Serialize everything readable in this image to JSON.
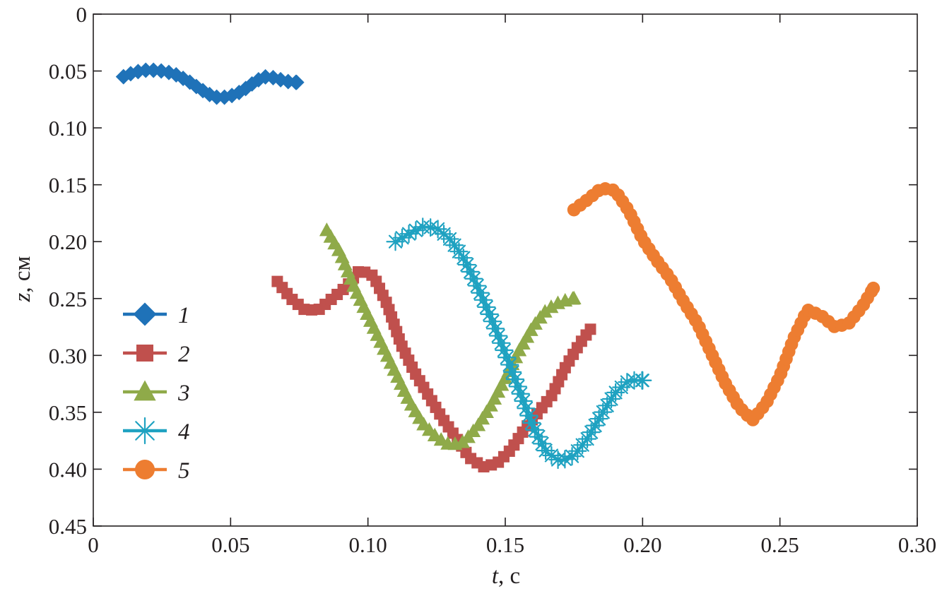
{
  "chart_data": {
    "type": "scatter",
    "title": "",
    "xlabel": {
      "var": "t",
      "unit": ", c"
    },
    "ylabel": {
      "var": "z",
      "unit": ", см"
    },
    "xlim": [
      0,
      0.3
    ],
    "ylim": [
      0,
      0.45
    ],
    "y_inverted": true,
    "grid": false,
    "legend_position": "lower-left",
    "x_ticks": [
      "0",
      "0.05",
      "0.10",
      "0.15",
      "0.20",
      "0.25",
      "0.30"
    ],
    "x_tick_values": [
      0,
      0.05,
      0.1,
      0.15,
      0.2,
      0.25,
      0.3
    ],
    "y_ticks": [
      "0",
      "0.05",
      "0.10",
      "0.15",
      "0.20",
      "0.25",
      "0.30",
      "0.35",
      "0.40",
      "0.45"
    ],
    "y_tick_values": [
      0,
      0.05,
      0.1,
      0.15,
      0.2,
      0.25,
      0.3,
      0.35,
      0.4,
      0.45
    ],
    "series": [
      {
        "name": "1",
        "marker": "diamond",
        "color": "#1f72b8",
        "points": [
          [
            0.011,
            0.055
          ],
          [
            0.015,
            0.051
          ],
          [
            0.02,
            0.049
          ],
          [
            0.025,
            0.05
          ],
          [
            0.029,
            0.052
          ],
          [
            0.034,
            0.058
          ],
          [
            0.039,
            0.066
          ],
          [
            0.044,
            0.073
          ],
          [
            0.049,
            0.073
          ],
          [
            0.054,
            0.068
          ],
          [
            0.058,
            0.061
          ],
          [
            0.062,
            0.055
          ],
          [
            0.066,
            0.056
          ],
          [
            0.07,
            0.059
          ],
          [
            0.074,
            0.06
          ]
        ]
      },
      {
        "name": "2",
        "marker": "square",
        "color": "#c0504d",
        "points": [
          [
            0.067,
            0.235
          ],
          [
            0.072,
            0.25
          ],
          [
            0.077,
            0.26
          ],
          [
            0.082,
            0.26
          ],
          [
            0.087,
            0.25
          ],
          [
            0.092,
            0.24
          ],
          [
            0.097,
            0.225
          ],
          [
            0.102,
            0.23
          ],
          [
            0.107,
            0.255
          ],
          [
            0.112,
            0.29
          ],
          [
            0.117,
            0.315
          ],
          [
            0.122,
            0.335
          ],
          [
            0.127,
            0.355
          ],
          [
            0.132,
            0.372
          ],
          [
            0.137,
            0.39
          ],
          [
            0.142,
            0.398
          ],
          [
            0.147,
            0.395
          ],
          [
            0.152,
            0.383
          ],
          [
            0.157,
            0.365
          ],
          [
            0.162,
            0.35
          ],
          [
            0.167,
            0.335
          ],
          [
            0.172,
            0.31
          ],
          [
            0.177,
            0.29
          ],
          [
            0.181,
            0.277
          ]
        ]
      },
      {
        "name": "3",
        "marker": "triangle",
        "color": "#8faa49",
        "points": [
          [
            0.085,
            0.19
          ],
          [
            0.09,
            0.21
          ],
          [
            0.095,
            0.24
          ],
          [
            0.1,
            0.265
          ],
          [
            0.105,
            0.29
          ],
          [
            0.11,
            0.315
          ],
          [
            0.115,
            0.34
          ],
          [
            0.12,
            0.36
          ],
          [
            0.125,
            0.372
          ],
          [
            0.13,
            0.379
          ],
          [
            0.135,
            0.376
          ],
          [
            0.14,
            0.362
          ],
          [
            0.145,
            0.343
          ],
          [
            0.15,
            0.32
          ],
          [
            0.155,
            0.296
          ],
          [
            0.16,
            0.275
          ],
          [
            0.165,
            0.26
          ],
          [
            0.17,
            0.253
          ],
          [
            0.175,
            0.25
          ]
        ]
      },
      {
        "name": "4",
        "marker": "asterisk",
        "color": "#1fa2c1",
        "points": [
          [
            0.11,
            0.2
          ],
          [
            0.115,
            0.193
          ],
          [
            0.12,
            0.187
          ],
          [
            0.125,
            0.188
          ],
          [
            0.13,
            0.198
          ],
          [
            0.135,
            0.215
          ],
          [
            0.14,
            0.24
          ],
          [
            0.145,
            0.268
          ],
          [
            0.15,
            0.298
          ],
          [
            0.155,
            0.33
          ],
          [
            0.16,
            0.362
          ],
          [
            0.165,
            0.385
          ],
          [
            0.17,
            0.393
          ],
          [
            0.175,
            0.388
          ],
          [
            0.18,
            0.373
          ],
          [
            0.185,
            0.352
          ],
          [
            0.19,
            0.333
          ],
          [
            0.195,
            0.322
          ],
          [
            0.2,
            0.322
          ]
        ]
      },
      {
        "name": "5",
        "marker": "circle",
        "color": "#ed7d31",
        "points": [
          [
            0.175,
            0.172
          ],
          [
            0.18,
            0.163
          ],
          [
            0.185,
            0.153
          ],
          [
            0.19,
            0.155
          ],
          [
            0.195,
            0.173
          ],
          [
            0.2,
            0.198
          ],
          [
            0.205,
            0.216
          ],
          [
            0.21,
            0.232
          ],
          [
            0.215,
            0.253
          ],
          [
            0.22,
            0.272
          ],
          [
            0.225,
            0.298
          ],
          [
            0.23,
            0.324
          ],
          [
            0.235,
            0.345
          ],
          [
            0.24,
            0.357
          ],
          [
            0.245,
            0.342
          ],
          [
            0.25,
            0.318
          ],
          [
            0.255,
            0.285
          ],
          [
            0.26,
            0.26
          ],
          [
            0.265,
            0.265
          ],
          [
            0.27,
            0.275
          ],
          [
            0.275,
            0.272
          ],
          [
            0.28,
            0.257
          ],
          [
            0.284,
            0.241
          ]
        ]
      }
    ]
  }
}
